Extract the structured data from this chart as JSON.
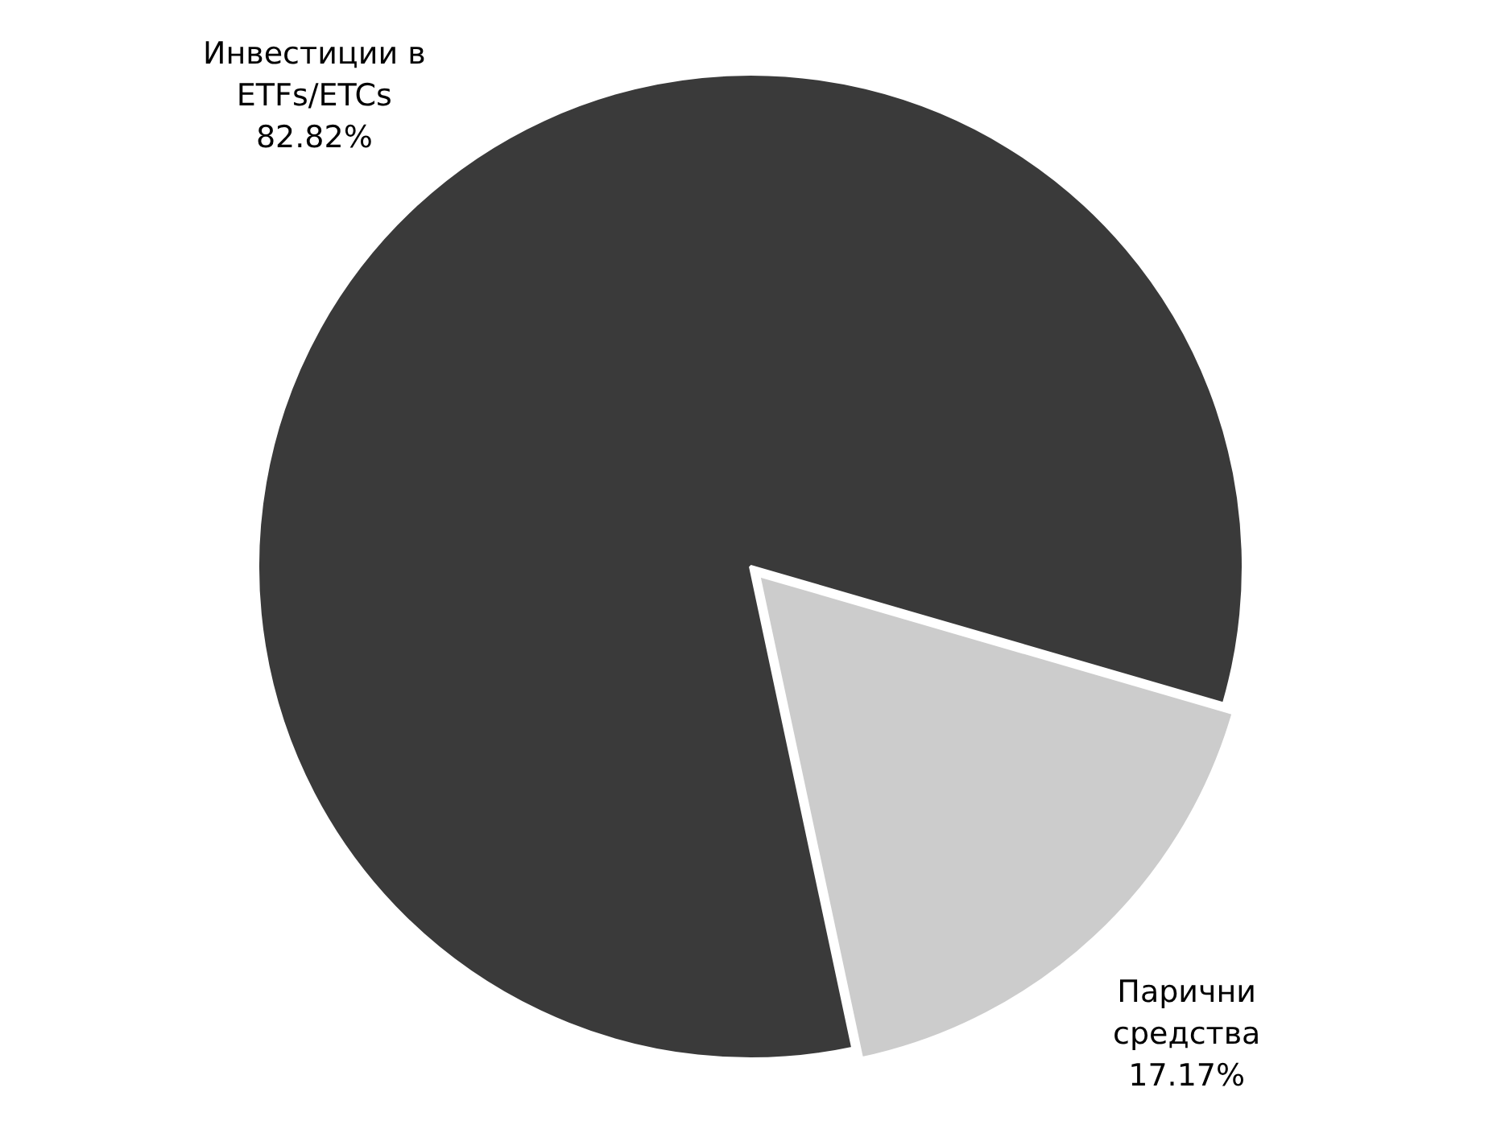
{
  "chart_data": {
    "type": "pie",
    "categories": [
      "Инвестиции в ETFs/ETCs",
      "Парични средства"
    ],
    "values": [
      82.82,
      17.17
    ],
    "colors": [
      "#3a3a3a",
      "#cccccc"
    ],
    "value_labels": [
      "82.82%",
      "17.17%"
    ]
  }
}
